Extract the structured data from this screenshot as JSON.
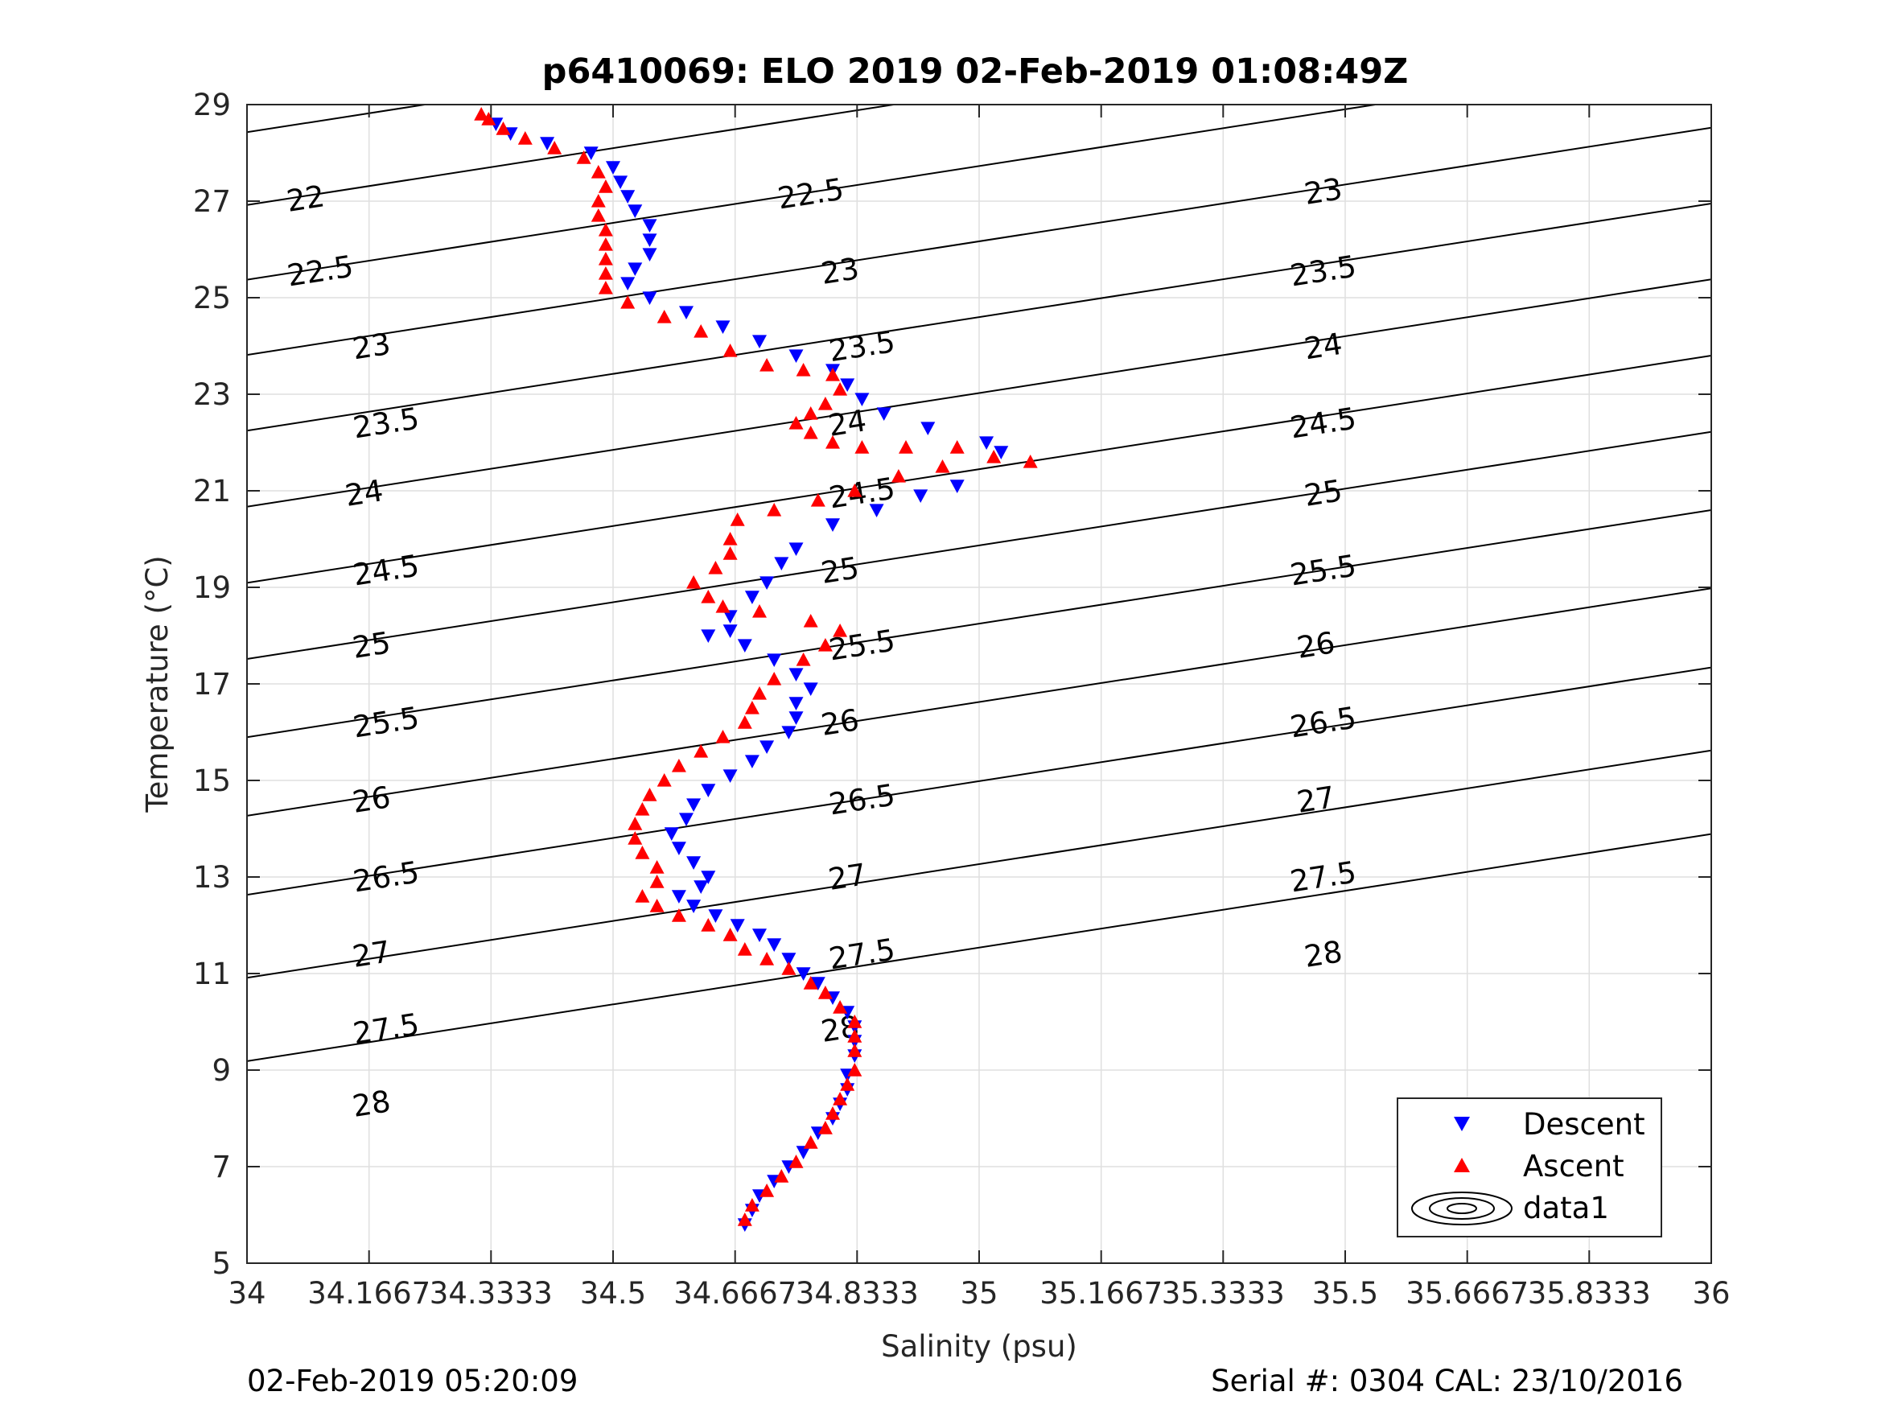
{
  "title": "p6410069: ELO 2019 02-Feb-2019 01:08:49Z",
  "footer_left": "02-Feb-2019 05:20:09",
  "footer_right": "Serial #: 0304  CAL: 23/10/2016",
  "chart_data": {
    "type": "scatter",
    "title": "p6410069: ELO 2019 02-Feb-2019 01:08:49Z",
    "xlabel": "Salinity (psu)",
    "ylabel": "Temperature (°C)",
    "xlim": [
      34,
      36
    ],
    "ylim": [
      5,
      29
    ],
    "grid": true,
    "x_ticks": [
      34,
      34.1667,
      34.3333,
      34.5,
      34.6667,
      34.8333,
      35,
      35.1667,
      35.3333,
      35.5,
      35.6667,
      35.8333,
      36
    ],
    "x_tick_labels": [
      "34",
      "34.1667",
      "34.3333",
      "34.5",
      "34.6667",
      "34.8333",
      "35",
      "35.1667",
      "35.3333",
      "35.5",
      "35.6667",
      "35.8333",
      "36"
    ],
    "y_ticks": [
      5,
      7,
      9,
      11,
      13,
      15,
      17,
      19,
      21,
      23,
      25,
      27,
      29
    ],
    "y_tick_labels": [
      "5",
      "7",
      "9",
      "11",
      "13",
      "15",
      "17",
      "19",
      "21",
      "23",
      "25",
      "27",
      "29"
    ],
    "legend": {
      "placement": "bottom-right",
      "entries": [
        "Descent",
        "Ascent",
        "data1"
      ]
    },
    "series": [
      {
        "name": "Descent",
        "marker": "triangle-down",
        "color": "#0000ff",
        "points": [
          [
            34.68,
            5.8
          ],
          [
            34.69,
            6.1
          ],
          [
            34.7,
            6.4
          ],
          [
            34.72,
            6.7
          ],
          [
            34.74,
            7.0
          ],
          [
            34.76,
            7.3
          ],
          [
            34.78,
            7.7
          ],
          [
            34.8,
            8.0
          ],
          [
            34.81,
            8.3
          ],
          [
            34.82,
            8.6
          ],
          [
            34.82,
            8.9
          ],
          [
            34.83,
            9.3
          ],
          [
            34.83,
            9.6
          ],
          [
            34.83,
            9.9
          ],
          [
            34.82,
            10.2
          ],
          [
            34.8,
            10.5
          ],
          [
            34.78,
            10.8
          ],
          [
            34.76,
            11.0
          ],
          [
            34.74,
            11.3
          ],
          [
            34.72,
            11.6
          ],
          [
            34.7,
            11.8
          ],
          [
            34.67,
            12.0
          ],
          [
            34.64,
            12.2
          ],
          [
            34.61,
            12.4
          ],
          [
            34.59,
            12.6
          ],
          [
            34.62,
            12.8
          ],
          [
            34.63,
            13.0
          ],
          [
            34.61,
            13.3
          ],
          [
            34.59,
            13.6
          ],
          [
            34.58,
            13.9
          ],
          [
            34.6,
            14.2
          ],
          [
            34.61,
            14.5
          ],
          [
            34.63,
            14.8
          ],
          [
            34.66,
            15.1
          ],
          [
            34.69,
            15.4
          ],
          [
            34.71,
            15.7
          ],
          [
            34.74,
            16.0
          ],
          [
            34.75,
            16.3
          ],
          [
            34.75,
            16.6
          ],
          [
            34.77,
            16.9
          ],
          [
            34.75,
            17.2
          ],
          [
            34.72,
            17.5
          ],
          [
            34.68,
            17.8
          ],
          [
            34.66,
            18.1
          ],
          [
            34.63,
            18.0
          ],
          [
            34.66,
            18.4
          ],
          [
            34.69,
            18.8
          ],
          [
            34.71,
            19.1
          ],
          [
            34.73,
            19.5
          ],
          [
            34.75,
            19.8
          ],
          [
            34.8,
            20.3
          ],
          [
            34.86,
            20.6
          ],
          [
            34.92,
            20.9
          ],
          [
            34.97,
            21.1
          ],
          [
            35.03,
            21.8
          ],
          [
            35.01,
            22.0
          ],
          [
            34.93,
            22.3
          ],
          [
            34.87,
            22.6
          ],
          [
            34.84,
            22.9
          ],
          [
            34.82,
            23.2
          ],
          [
            34.8,
            23.5
          ],
          [
            34.75,
            23.8
          ],
          [
            34.7,
            24.1
          ],
          [
            34.65,
            24.4
          ],
          [
            34.6,
            24.7
          ],
          [
            34.55,
            25.0
          ],
          [
            34.52,
            25.3
          ],
          [
            34.53,
            25.6
          ],
          [
            34.55,
            25.9
          ],
          [
            34.55,
            26.2
          ],
          [
            34.55,
            26.5
          ],
          [
            34.53,
            26.8
          ],
          [
            34.52,
            27.1
          ],
          [
            34.51,
            27.4
          ],
          [
            34.5,
            27.7
          ],
          [
            34.47,
            28.0
          ],
          [
            34.41,
            28.2
          ],
          [
            34.36,
            28.4
          ],
          [
            34.34,
            28.6
          ]
        ]
      },
      {
        "name": "Ascent",
        "marker": "triangle-up",
        "color": "#ff0000",
        "points": [
          [
            34.68,
            5.9
          ],
          [
            34.69,
            6.2
          ],
          [
            34.71,
            6.5
          ],
          [
            34.73,
            6.8
          ],
          [
            34.75,
            7.1
          ],
          [
            34.77,
            7.5
          ],
          [
            34.79,
            7.8
          ],
          [
            34.8,
            8.1
          ],
          [
            34.81,
            8.4
          ],
          [
            34.82,
            8.7
          ],
          [
            34.83,
            9.0
          ],
          [
            34.83,
            9.4
          ],
          [
            34.83,
            9.7
          ],
          [
            34.83,
            10.0
          ],
          [
            34.81,
            10.3
          ],
          [
            34.79,
            10.6
          ],
          [
            34.77,
            10.8
          ],
          [
            34.74,
            11.1
          ],
          [
            34.71,
            11.3
          ],
          [
            34.68,
            11.5
          ],
          [
            34.66,
            11.8
          ],
          [
            34.63,
            12.0
          ],
          [
            34.59,
            12.2
          ],
          [
            34.56,
            12.4
          ],
          [
            34.54,
            12.6
          ],
          [
            34.56,
            12.9
          ],
          [
            34.56,
            13.2
          ],
          [
            34.54,
            13.5
          ],
          [
            34.53,
            13.8
          ],
          [
            34.53,
            14.1
          ],
          [
            34.54,
            14.4
          ],
          [
            34.55,
            14.7
          ],
          [
            34.57,
            15.0
          ],
          [
            34.59,
            15.3
          ],
          [
            34.62,
            15.6
          ],
          [
            34.65,
            15.9
          ],
          [
            34.68,
            16.2
          ],
          [
            34.69,
            16.5
          ],
          [
            34.7,
            16.8
          ],
          [
            34.72,
            17.1
          ],
          [
            34.76,
            17.5
          ],
          [
            34.79,
            17.8
          ],
          [
            34.81,
            18.1
          ],
          [
            34.77,
            18.3
          ],
          [
            34.7,
            18.5
          ],
          [
            34.65,
            18.6
          ],
          [
            34.63,
            18.8
          ],
          [
            34.61,
            19.1
          ],
          [
            34.64,
            19.4
          ],
          [
            34.66,
            19.7
          ],
          [
            34.66,
            20.0
          ],
          [
            34.67,
            20.4
          ],
          [
            34.72,
            20.6
          ],
          [
            34.78,
            20.8
          ],
          [
            34.83,
            21.0
          ],
          [
            34.89,
            21.3
          ],
          [
            34.95,
            21.5
          ],
          [
            35.02,
            21.7
          ],
          [
            35.07,
            21.6
          ],
          [
            34.97,
            21.9
          ],
          [
            34.9,
            21.9
          ],
          [
            34.84,
            21.9
          ],
          [
            34.8,
            22.0
          ],
          [
            34.77,
            22.2
          ],
          [
            34.75,
            22.4
          ],
          [
            34.77,
            22.6
          ],
          [
            34.79,
            22.8
          ],
          [
            34.81,
            23.1
          ],
          [
            34.8,
            23.4
          ],
          [
            34.76,
            23.5
          ],
          [
            34.71,
            23.6
          ],
          [
            34.66,
            23.9
          ],
          [
            34.62,
            24.3
          ],
          [
            34.57,
            24.6
          ],
          [
            34.52,
            24.9
          ],
          [
            34.49,
            25.2
          ],
          [
            34.49,
            25.5
          ],
          [
            34.49,
            25.8
          ],
          [
            34.49,
            26.1
          ],
          [
            34.49,
            26.4
          ],
          [
            34.48,
            26.7
          ],
          [
            34.48,
            27.0
          ],
          [
            34.49,
            27.3
          ],
          [
            34.48,
            27.6
          ],
          [
            34.46,
            27.9
          ],
          [
            34.42,
            28.1
          ],
          [
            34.38,
            28.3
          ],
          [
            34.35,
            28.5
          ],
          [
            34.33,
            28.7
          ],
          [
            34.32,
            28.8
          ]
        ]
      }
    ],
    "contours": [
      {
        "level": "22",
        "s0": 34.0,
        "t0": 28.428,
        "s1": 36.0,
        "t1": 33.14,
        "label_positions": [
          [
            34.08,
            27.05
          ],
          [
            34.74,
            29.55
          ]
        ]
      },
      {
        "level": "22.5",
        "s0": 34.0,
        "t0": 26.92,
        "s1": 36.0,
        "t1": 31.63,
        "label_positions": [
          [
            34.1,
            25.55
          ],
          [
            34.77,
            27.15
          ],
          [
            35.46,
            28.85
          ]
        ]
      },
      {
        "level": "23",
        "s0": 34.0,
        "t0": 25.373,
        "s1": 36.0,
        "t1": 30.08,
        "label_positions": [
          [
            34.17,
            23.99
          ],
          [
            34.81,
            25.55
          ],
          [
            35.47,
            27.2
          ]
        ]
      },
      {
        "level": "23.5",
        "s0": 34.0,
        "t0": 23.815,
        "s1": 36.0,
        "t1": 28.52,
        "label_positions": [
          [
            34.19,
            22.4
          ],
          [
            34.84,
            23.99
          ],
          [
            35.47,
            25.55
          ]
        ]
      },
      {
        "level": "24",
        "s0": 34.0,
        "t0": 22.246,
        "s1": 36.0,
        "t1": 26.95,
        "label_positions": [
          [
            34.16,
            20.95
          ],
          [
            34.82,
            22.4
          ],
          [
            35.47,
            23.99
          ]
        ]
      },
      {
        "level": "24.5",
        "s0": 34.0,
        "t0": 20.671,
        "s1": 36.0,
        "t1": 25.38,
        "label_positions": [
          [
            34.19,
            19.35
          ],
          [
            34.84,
            20.95
          ],
          [
            35.47,
            22.4
          ]
        ]
      },
      {
        "level": "25",
        "s0": 34.0,
        "t0": 19.094,
        "s1": 36.0,
        "t1": 23.8,
        "label_positions": [
          [
            34.17,
            17.8
          ],
          [
            34.81,
            19.35
          ],
          [
            35.47,
            20.95
          ]
        ]
      },
      {
        "level": "25.5",
        "s0": 34.0,
        "t0": 17.516,
        "s1": 36.0,
        "t1": 22.22,
        "label_positions": [
          [
            34.19,
            16.2
          ],
          [
            34.84,
            17.8
          ],
          [
            35.47,
            19.35
          ]
        ]
      },
      {
        "level": "26",
        "s0": 34.0,
        "t0": 15.896,
        "s1": 36.0,
        "t1": 20.6,
        "label_positions": [
          [
            34.17,
            14.6
          ],
          [
            34.81,
            16.2
          ],
          [
            35.46,
            17.8
          ]
        ]
      },
      {
        "level": "26.5",
        "s0": 34.0,
        "t0": 14.269,
        "s1": 36.0,
        "t1": 18.98,
        "label_positions": [
          [
            34.19,
            13.0
          ],
          [
            34.84,
            14.6
          ],
          [
            35.47,
            16.2
          ]
        ]
      },
      {
        "level": "27",
        "s0": 34.0,
        "t0": 12.631,
        "s1": 36.0,
        "t1": 17.34,
        "label_positions": [
          [
            34.17,
            11.4
          ],
          [
            34.82,
            13.0
          ],
          [
            35.46,
            14.6
          ]
        ]
      },
      {
        "level": "27.5",
        "s0": 34.0,
        "t0": 10.912,
        "s1": 36.0,
        "t1": 15.62,
        "label_positions": [
          [
            34.19,
            9.85
          ],
          [
            34.84,
            11.4
          ],
          [
            35.47,
            13.0
          ]
        ]
      },
      {
        "level": "28",
        "s0": 34.0,
        "t0": 9.185,
        "s1": 36.0,
        "t1": 13.89,
        "label_positions": [
          [
            34.17,
            8.3
          ],
          [
            34.81,
            9.85
          ],
          [
            35.47,
            11.4
          ]
        ]
      }
    ]
  },
  "colors": {
    "descent": "#0000ff",
    "ascent": "#ff0000",
    "grid": "#dfdfdf",
    "axes": "#262626"
  }
}
